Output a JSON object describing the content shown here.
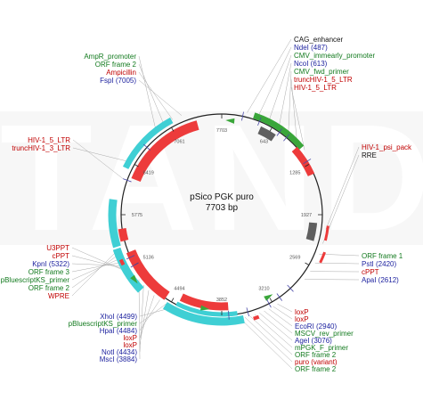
{
  "colors": {
    "red": "#c00000",
    "green": "#127a1e",
    "blue": "#1a1f9e",
    "feat_red": "#ed3b3b",
    "feat_cyan": "#3fcfd4",
    "feat_green": "#3aa63a",
    "feat_grey": "#5f5f5f"
  },
  "watermark": "TANDZ",
  "plasmid": {
    "name": "pSico PGK puro",
    "length": "7703 bp"
  },
  "tick_labels": [
    "7703",
    "643",
    "1285",
    "1927",
    "2569",
    "3210",
    "3852",
    "4494",
    "5136",
    "5775",
    "6419",
    "7061"
  ],
  "labels_top": [
    {
      "text": "AmpR_promoter",
      "color": "green"
    },
    {
      "text": "ORF frame 2",
      "color": "green"
    },
    {
      "text": "Ampicillin",
      "color": "red"
    },
    {
      "text": "FspI (7005)",
      "color": "blue"
    }
  ],
  "labels_top_right": [
    {
      "text": "CAG_enhancer",
      "color": "black"
    },
    {
      "text": "NdeI (487)",
      "color": "blue"
    },
    {
      "text": "CMV_immearly_promoter",
      "color": "green"
    },
    {
      "text": "NcoI (613)",
      "color": "blue"
    },
    {
      "text": "CMV_fwd_primer",
      "color": "green"
    },
    {
      "text": "truncHIV-1_5_LTR",
      "color": "red"
    },
    {
      "text": "HIV-1_5_LTR",
      "color": "red"
    }
  ],
  "labels_right_mid": [
    {
      "text": "HIV-1_psi_pack",
      "color": "red"
    },
    {
      "text": "RRE",
      "color": "black"
    }
  ],
  "labels_right_low": [
    {
      "text": "ORF frame 1",
      "color": "green"
    },
    {
      "text": "PstI (2420)",
      "color": "blue"
    },
    {
      "text": "cPPT",
      "color": "red"
    },
    {
      "text": "ApaI (2612)",
      "color": "blue"
    }
  ],
  "labels_left_mid": [
    {
      "text": "HIV-1_5_LTR",
      "color": "red"
    },
    {
      "text": "truncHIV-1_3_LTR",
      "color": "red"
    }
  ],
  "labels_left_low": [
    {
      "text": "U3PPT",
      "color": "red"
    },
    {
      "text": "cPPT",
      "color": "red"
    },
    {
      "text": "KpnI (5322)",
      "color": "blue"
    },
    {
      "text": "ORF frame 3",
      "color": "green"
    },
    {
      "text": "pBluescriptKS_primer",
      "color": "green"
    },
    {
      "text": "ORF frame 2",
      "color": "green"
    },
    {
      "text": "WPRE",
      "color": "red"
    }
  ],
  "labels_bottom_left": [
    {
      "text": "XhoI (4499)",
      "color": "blue"
    },
    {
      "text": "pBluescriptKS_primer",
      "color": "green"
    },
    {
      "text": "HpaI (4484)",
      "color": "blue"
    },
    {
      "text": "loxP",
      "color": "red"
    },
    {
      "text": "loxP",
      "color": "red"
    },
    {
      "text": "NotI (4434)",
      "color": "blue"
    },
    {
      "text": "MscI (3884)",
      "color": "blue"
    }
  ],
  "labels_bottom_right": [
    {
      "text": "loxP",
      "color": "red"
    },
    {
      "text": "loxP",
      "color": "red"
    },
    {
      "text": "EcoRI (2940)",
      "color": "blue"
    },
    {
      "text": "MSCV_rev_primer",
      "color": "green"
    },
    {
      "text": "AgeI (3076)",
      "color": "blue"
    },
    {
      "text": "mPGK_F_primer",
      "color": "green"
    },
    {
      "text": "ORF frame 2",
      "color": "green"
    },
    {
      "text": "puro (variant)",
      "color": "red"
    },
    {
      "text": "ORF frame 2",
      "color": "green"
    }
  ]
}
